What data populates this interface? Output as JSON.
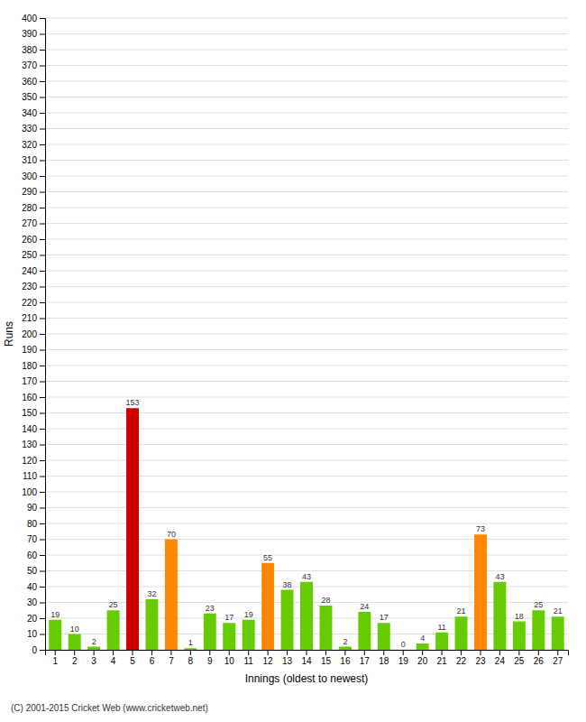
{
  "chart_data": {
    "type": "bar",
    "xlabel": "Innings (oldest to newest)",
    "ylabel": "Runs",
    "footer": "(C) 2001-2015 Cricket Web (www.cricketweb.net)",
    "categories": [
      1,
      2,
      3,
      4,
      5,
      6,
      7,
      8,
      9,
      10,
      11,
      12,
      13,
      14,
      15,
      16,
      17,
      18,
      19,
      20,
      21,
      22,
      23,
      24,
      25,
      26,
      27
    ],
    "values": [
      19,
      10,
      2,
      25,
      153,
      32,
      70,
      1,
      23,
      17,
      19,
      55,
      38,
      43,
      28,
      2,
      24,
      17,
      0,
      4,
      11,
      21,
      73,
      43,
      18,
      25,
      21
    ],
    "colors": [
      "#66cc00",
      "#66cc00",
      "#66cc00",
      "#66cc00",
      "#cc0000",
      "#66cc00",
      "#ff8800",
      "#66cc00",
      "#66cc00",
      "#66cc00",
      "#66cc00",
      "#ff8800",
      "#66cc00",
      "#66cc00",
      "#66cc00",
      "#66cc00",
      "#66cc00",
      "#66cc00",
      "#66cc00",
      "#66cc00",
      "#66cc00",
      "#66cc00",
      "#ff8800",
      "#66cc00",
      "#66cc00",
      "#66cc00",
      "#66cc00"
    ],
    "ylim": [
      0,
      400
    ],
    "yticks": [
      0,
      10,
      20,
      30,
      40,
      50,
      60,
      70,
      80,
      90,
      100,
      110,
      120,
      130,
      140,
      150,
      160,
      170,
      180,
      190,
      200,
      210,
      220,
      230,
      240,
      250,
      260,
      270,
      280,
      290,
      300,
      310,
      320,
      330,
      340,
      350,
      360,
      370,
      380,
      390,
      400
    ],
    "grid": true,
    "data_labels": true
  }
}
